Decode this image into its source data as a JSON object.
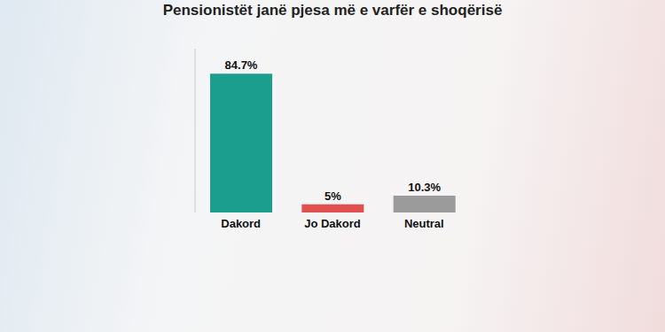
{
  "chart_data": {
    "type": "bar",
    "title": "Pensionistët janë pjesa më e varfër e shoqërisë",
    "categories": [
      "Dakord",
      "Jo Dakord",
      "Neutral"
    ],
    "values": [
      84.7,
      5,
      10.3
    ],
    "value_labels": [
      "84.7%",
      "5%",
      "10.3%"
    ],
    "colors": [
      "#1c9e8e",
      "#e0504f",
      "#9b9b9b"
    ],
    "ylim": [
      0,
      100
    ],
    "data_labels": true,
    "tick_labels": "x",
    "grid": false
  }
}
